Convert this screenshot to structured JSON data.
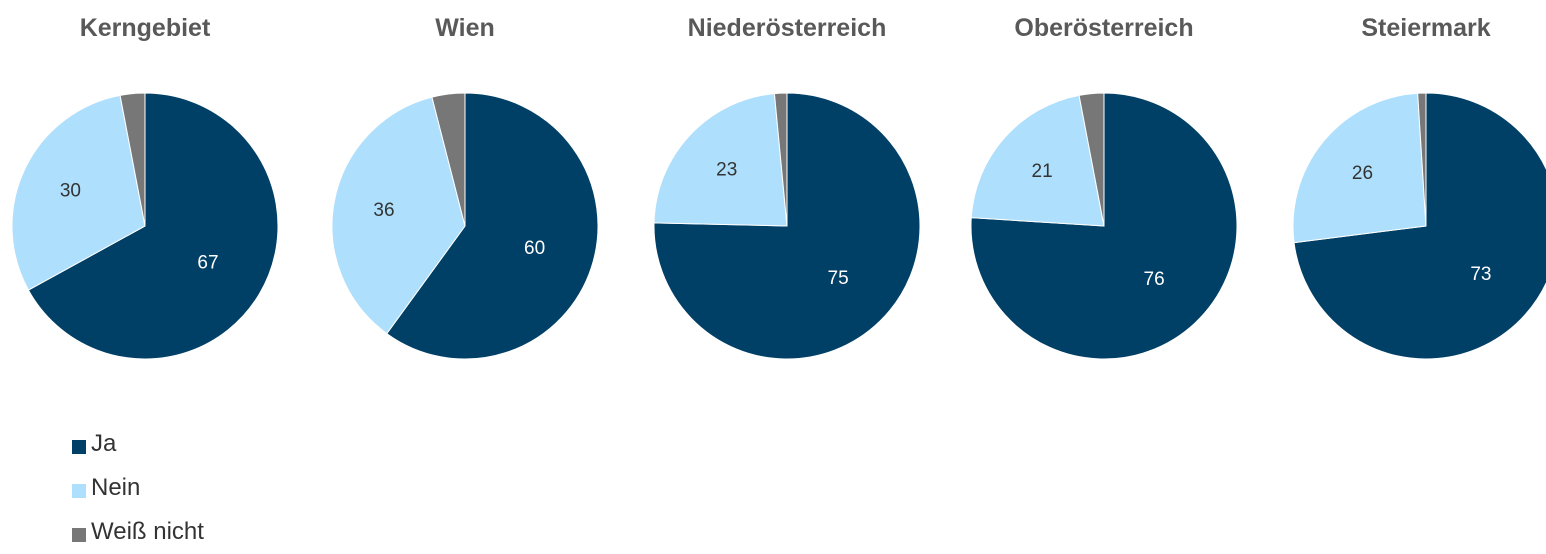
{
  "colors": {
    "ja": "#003F66",
    "nein": "#AEDFFC",
    "weiss_nicht": "#777777",
    "title": "#595959",
    "label_on_dark": "#ffffff",
    "label_on_light": "#333333"
  },
  "legend": {
    "items": [
      {
        "key": "ja",
        "label": "Ja"
      },
      {
        "key": "nein",
        "label": "Nein"
      },
      {
        "key": "weiss_nicht",
        "label": "Weiß nicht"
      }
    ]
  },
  "chart_data": [
    {
      "type": "pie",
      "title": "Kerngebiet",
      "slices": [
        {
          "key": "ja",
          "name": "Ja",
          "value": 67,
          "label": "67"
        },
        {
          "key": "nein",
          "name": "Nein",
          "value": 30,
          "label": "30"
        },
        {
          "key": "weiss_nicht",
          "name": "Weiß nicht",
          "value": 3,
          "label": ""
        }
      ]
    },
    {
      "type": "pie",
      "title": "Wien",
      "slices": [
        {
          "key": "ja",
          "name": "Ja",
          "value": 60,
          "label": "60"
        },
        {
          "key": "nein",
          "name": "Nein",
          "value": 36,
          "label": "36"
        },
        {
          "key": "weiss_nicht",
          "name": "Weiß nicht",
          "value": 4,
          "label": ""
        }
      ]
    },
    {
      "type": "pie",
      "title": "Niederösterreich",
      "slices": [
        {
          "key": "ja",
          "name": "Ja",
          "value": 75,
          "label": "75"
        },
        {
          "key": "nein",
          "name": "Nein",
          "value": 23,
          "label": "23"
        },
        {
          "key": "weiss_nicht",
          "name": "Weiß nicht",
          "value": 1.5,
          "label": ""
        }
      ]
    },
    {
      "type": "pie",
      "title": "Oberösterreich",
      "slices": [
        {
          "key": "ja",
          "name": "Ja",
          "value": 76,
          "label": "76"
        },
        {
          "key": "nein",
          "name": "Nein",
          "value": 21,
          "label": "21"
        },
        {
          "key": "weiss_nicht",
          "name": "Weiß nicht",
          "value": 3,
          "label": ""
        }
      ]
    },
    {
      "type": "pie",
      "title": "Steiermark",
      "slices": [
        {
          "key": "ja",
          "name": "Ja",
          "value": 73,
          "label": "73"
        },
        {
          "key": "nein",
          "name": "Nein",
          "value": 26,
          "label": "26"
        },
        {
          "key": "weiss_nicht",
          "name": "Weiß nicht",
          "value": 1,
          "label": ""
        }
      ]
    }
  ]
}
